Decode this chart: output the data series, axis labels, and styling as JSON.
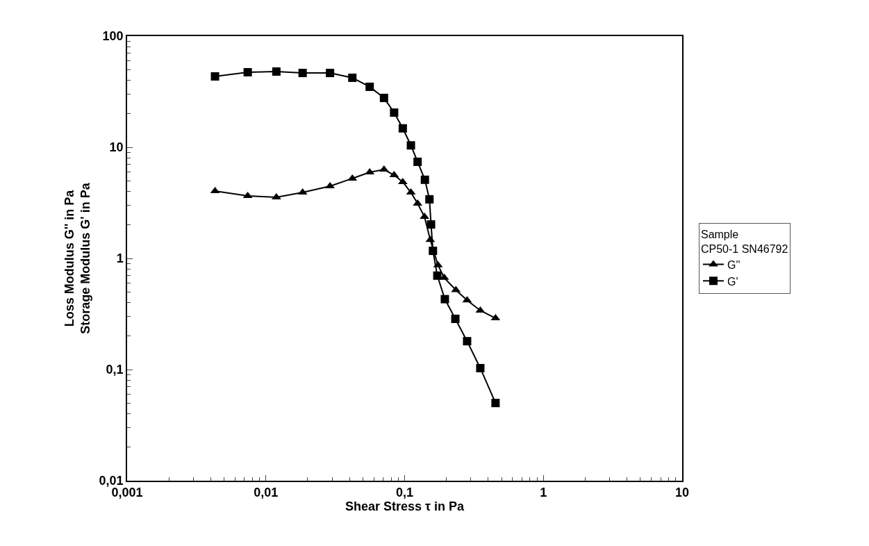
{
  "chart_data": {
    "type": "line",
    "xlabel": "Shear Stress τ in Pa",
    "ylabel": "Loss Modulus G'' in Pa\nStorage Modulus G' in Pa",
    "legend_title": "Sample\nCP50-1 SN46792",
    "log": "xy",
    "legend": "right",
    "xlim": [
      0.001,
      10
    ],
    "ylim": [
      0.01,
      100
    ],
    "xticks": [
      {
        "value": 0.001,
        "label": "0,001"
      },
      {
        "value": 0.01,
        "label": "0,01"
      },
      {
        "value": 0.1,
        "label": "0,1"
      },
      1,
      10
    ],
    "yticks": [
      {
        "value": 0.01,
        "label": "0,01"
      },
      {
        "value": 0.1,
        "label": "0,1"
      },
      1,
      10,
      100
    ],
    "series": [
      {
        "name": "G''",
        "color": "#000000",
        "marker": "triangle",
        "x": [
          0.0043,
          0.0074,
          0.0119,
          0.0184,
          0.029,
          0.042,
          0.056,
          0.071,
          0.084,
          0.097,
          0.111,
          0.124,
          0.139,
          0.153,
          0.174,
          0.193,
          0.234,
          0.282,
          0.351,
          0.452
        ],
        "values": [
          4.04,
          3.65,
          3.55,
          3.92,
          4.47,
          5.24,
          5.96,
          6.31,
          5.62,
          4.87,
          3.92,
          3.12,
          2.37,
          1.47,
          0.87,
          0.67,
          0.52,
          0.42,
          0.34,
          0.29
        ]
      },
      {
        "name": "G'",
        "color": "#000000",
        "marker": "square",
        "x": [
          0.0043,
          0.0074,
          0.0119,
          0.0184,
          0.029,
          0.042,
          0.056,
          0.071,
          0.084,
          0.097,
          0.111,
          0.124,
          0.14,
          0.151,
          0.155,
          0.16,
          0.172,
          0.195,
          0.232,
          0.282,
          0.351,
          0.452
        ],
        "values": [
          43.4,
          47.3,
          48,
          46.6,
          46.6,
          42.2,
          35,
          27.8,
          20.5,
          14.8,
          10.4,
          7.4,
          5.1,
          3.4,
          2.02,
          1.17,
          0.7,
          0.43,
          0.286,
          0.18,
          0.103,
          0.05
        ]
      }
    ]
  }
}
